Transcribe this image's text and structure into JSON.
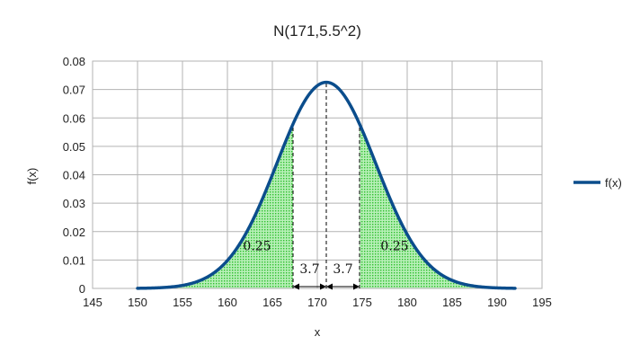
{
  "chart_data": {
    "type": "line",
    "title": "N(171,5.5^2)",
    "xlabel": "x",
    "ylabel": "f(x)",
    "xlim": [
      145,
      195
    ],
    "ylim": [
      0,
      0.08
    ],
    "xticks": [
      145,
      150,
      155,
      160,
      165,
      170,
      175,
      180,
      185,
      190,
      195
    ],
    "yticks": [
      "0",
      "0.01",
      "0.02",
      "0.03",
      "0.04",
      "0.05",
      "0.06",
      "0.07",
      "0.08"
    ],
    "grid": true,
    "legend_position": "right",
    "series": [
      {
        "name": "f(x)",
        "mean": 171,
        "sd": 5.5,
        "x_range": [
          150,
          192
        ],
        "color": "#0b4d8c"
      }
    ],
    "shaded_regions": [
      {
        "from": 150,
        "to": 167.3,
        "label": "0.25",
        "color": "#33cc33"
      },
      {
        "from": 174.7,
        "to": 192,
        "label": "0.25",
        "color": "#33cc33"
      }
    ],
    "reference_lines": [
      167.3,
      171,
      174.7
    ],
    "intervals": [
      {
        "from": 167.3,
        "to": 171,
        "label": "3.7"
      },
      {
        "from": 171,
        "to": 174.7,
        "label": "3.7"
      }
    ]
  }
}
